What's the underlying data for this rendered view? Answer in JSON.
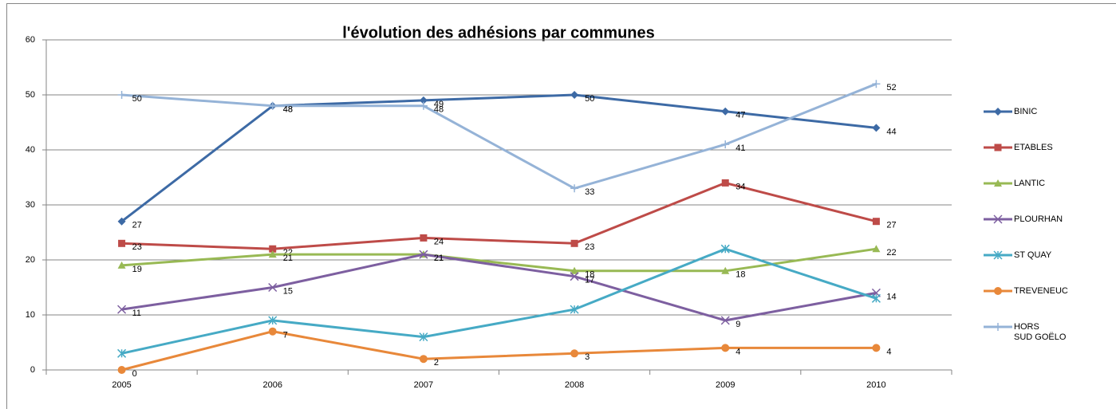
{
  "chart_data": {
    "type": "line",
    "title": "l'évolution des adhésions par communes",
    "categories": [
      "2005",
      "2006",
      "2007",
      "2008",
      "2009",
      "2010"
    ],
    "ylim": [
      0,
      60
    ],
    "yticks": [
      0,
      10,
      20,
      30,
      40,
      50,
      60
    ],
    "grid": true,
    "legend": "right",
    "series": [
      {
        "name": "BINIC",
        "color": "#3d6aa5",
        "marker": "diamond",
        "show_labels": true,
        "values": [
          27,
          48,
          49,
          50,
          47,
          44
        ]
      },
      {
        "name": "ETABLES",
        "color": "#be4b48",
        "marker": "square",
        "show_labels": true,
        "values": [
          23,
          22,
          24,
          23,
          34,
          27
        ]
      },
      {
        "name": "LANTIC",
        "color": "#98b954",
        "marker": "triangle",
        "show_labels": true,
        "values": [
          19,
          21,
          21,
          18,
          18,
          22
        ]
      },
      {
        "name": "PLOURHAN",
        "color": "#7d5fa0",
        "marker": "cross",
        "show_labels": true,
        "values": [
          11,
          15,
          21,
          17,
          9,
          14
        ]
      },
      {
        "name": "ST QUAY",
        "color": "#46aac5",
        "marker": "star",
        "show_labels": false,
        "values": [
          3,
          9,
          6,
          11,
          22,
          13
        ]
      },
      {
        "name": "TREVENEUC",
        "color": "#e8883a",
        "marker": "circle",
        "show_labels": true,
        "values": [
          0,
          7,
          2,
          3,
          4,
          4
        ]
      },
      {
        "name": "HORS\nSUD GOËLO",
        "color": "#95b3d7",
        "marker": "plus",
        "show_labels": true,
        "values": [
          50,
          48,
          48,
          33,
          41,
          52
        ]
      }
    ]
  }
}
